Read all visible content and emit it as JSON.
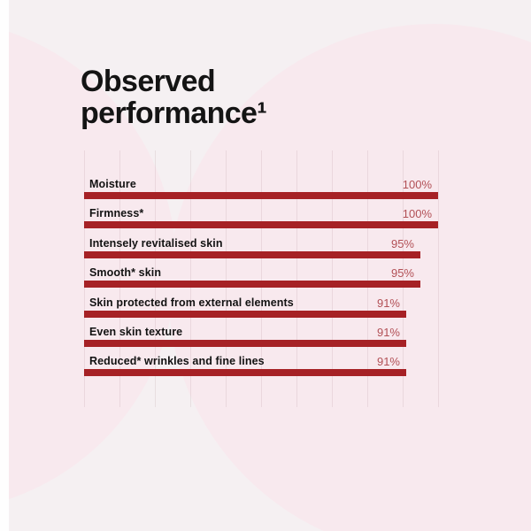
{
  "header": {
    "title_line1": "Observed",
    "title_line2": "performance¹"
  },
  "chart_data": {
    "type": "bar",
    "orientation": "horizontal",
    "title": "Observed performance¹",
    "categories": [
      "Moisture",
      "Firmness*",
      "Intensely revitalised skin",
      "Smooth* skin",
      "Skin protected from external elements",
      "Even skin texture",
      "Reduced* wrinkles and fine lines"
    ],
    "values": [
      100,
      100,
      95,
      95,
      91,
      91,
      91
    ],
    "value_labels": [
      "100%",
      "100%",
      "95%",
      "95%",
      "91%",
      "91%",
      "91%"
    ],
    "value_suffix": "%",
    "xlim": [
      0,
      100
    ],
    "gridline_interval": 10,
    "grid": "on",
    "legend": "none",
    "bar_color": "#a62125",
    "value_label_color": "#b25056",
    "label_color": "#121212"
  },
  "colors": {
    "background": "#f5f0f2",
    "decor_circle": "#f8e9ee",
    "edge_strip": "#fefefe"
  }
}
